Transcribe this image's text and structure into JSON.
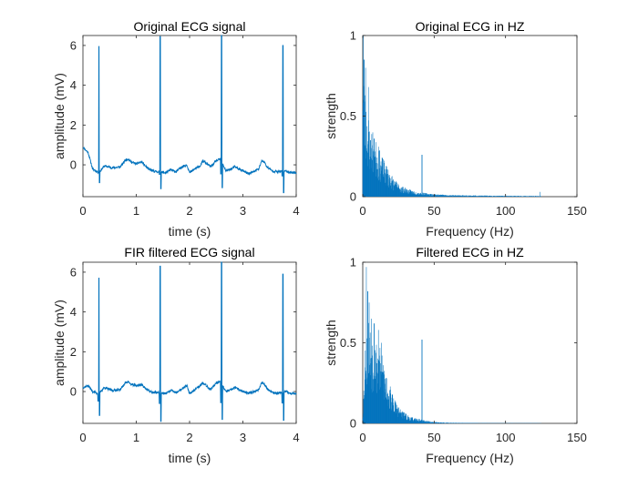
{
  "figure": {
    "background": "#ffffff",
    "line_color": "#0072bd",
    "axes_color": "#262626"
  },
  "chart_data": [
    {
      "id": "orig-time",
      "type": "line",
      "title": "Original ECG signal",
      "xlabel": "time (s)",
      "ylabel": "amplitude (mV)",
      "xlim": [
        0,
        4
      ],
      "ylim": [
        -1.6,
        6.5
      ],
      "xticks": [
        0,
        1,
        2,
        3,
        4
      ],
      "yticks": [
        0,
        2,
        4,
        6
      ],
      "baseline_points": [
        [
          0,
          0.9
        ],
        [
          0.1,
          0.6
        ],
        [
          0.18,
          -0.2
        ],
        [
          0.3,
          -0.4
        ],
        [
          0.4,
          -0.05
        ],
        [
          0.55,
          -0.15
        ],
        [
          0.7,
          -0.1
        ],
        [
          0.8,
          0.25
        ],
        [
          0.85,
          0.3
        ],
        [
          0.9,
          0.15
        ],
        [
          1.0,
          0.05
        ],
        [
          1.1,
          0.15
        ],
        [
          1.2,
          -0.15
        ],
        [
          1.3,
          -0.3
        ],
        [
          1.4,
          -0.35
        ],
        [
          1.55,
          -0.4
        ],
        [
          1.65,
          -0.25
        ],
        [
          1.75,
          -0.35
        ],
        [
          1.85,
          -0.1
        ],
        [
          1.95,
          0.0
        ],
        [
          2.0,
          -0.4
        ],
        [
          2.1,
          -0.2
        ],
        [
          2.2,
          -0.05
        ],
        [
          2.25,
          0.2
        ],
        [
          2.3,
          0.1
        ],
        [
          2.35,
          0.0
        ],
        [
          2.4,
          -0.1
        ],
        [
          2.5,
          0.2
        ],
        [
          2.58,
          0.3
        ],
        [
          2.68,
          -0.3
        ],
        [
          2.75,
          -0.25
        ],
        [
          2.85,
          -0.1
        ],
        [
          3.0,
          -0.3
        ],
        [
          3.1,
          -0.45
        ],
        [
          3.2,
          -0.35
        ],
        [
          3.3,
          -0.2
        ],
        [
          3.35,
          0.2
        ],
        [
          3.4,
          0.15
        ],
        [
          3.45,
          -0.1
        ],
        [
          3.55,
          -0.3
        ],
        [
          3.65,
          -0.35
        ],
        [
          3.8,
          -0.3
        ],
        [
          3.85,
          -0.35
        ],
        [
          3.95,
          -0.4
        ],
        [
          4.0,
          -0.4
        ]
      ],
      "spikes": [
        {
          "t": 0.3,
          "peak": 5.95,
          "trough": -0.9
        },
        {
          "t": 1.45,
          "peak": 6.45,
          "trough": -1.2
        },
        {
          "t": 2.6,
          "peak": 6.5,
          "trough": -1.15
        },
        {
          "t": 3.75,
          "peak": 6.0,
          "trough": -1.4
        }
      ]
    },
    {
      "id": "orig-freq",
      "type": "bar",
      "title": "Original ECG in HZ",
      "xlabel": "Frequency (Hz)",
      "ylabel": "strength",
      "xlim": [
        0,
        150
      ],
      "ylim": [
        0,
        1
      ],
      "xticks": [
        0,
        50,
        100,
        150
      ],
      "yticks": [
        0,
        0.5,
        1
      ],
      "envelope": [
        [
          0,
          1.0
        ],
        [
          0.5,
          0.82
        ],
        [
          1.5,
          0.62
        ],
        [
          3,
          0.52
        ],
        [
          5,
          0.42
        ],
        [
          7,
          0.38
        ],
        [
          10,
          0.3
        ],
        [
          14,
          0.22
        ],
        [
          18,
          0.16
        ],
        [
          22,
          0.1
        ],
        [
          26,
          0.07
        ],
        [
          30,
          0.05
        ],
        [
          35,
          0.035
        ],
        [
          40,
          0.025
        ],
        [
          45,
          0.02
        ],
        [
          50,
          0.015
        ],
        [
          60,
          0.01
        ],
        [
          80,
          0.007
        ],
        [
          100,
          0.005
        ],
        [
          125,
          0.004
        ]
      ],
      "peaks": [
        [
          0.3,
          1.0
        ],
        [
          1,
          0.85
        ],
        [
          2,
          0.8
        ],
        [
          4,
          0.68
        ],
        [
          5.5,
          0.35
        ],
        [
          8,
          0.36
        ],
        [
          11,
          0.31
        ],
        [
          41.5,
          0.26
        ],
        [
          124,
          0.03
        ]
      ],
      "max_freq": 125
    },
    {
      "id": "filt-time",
      "type": "line",
      "title": "FIR filtered ECG signal",
      "xlabel": "time (s)",
      "ylabel": "amplitude (mV)",
      "xlim": [
        0,
        4
      ],
      "ylim": [
        -1.6,
        6.5
      ],
      "xticks": [
        0,
        1,
        2,
        3,
        4
      ],
      "yticks": [
        0,
        2,
        4,
        6
      ],
      "baseline_points": [
        [
          0,
          0.2
        ],
        [
          0.1,
          0.3
        ],
        [
          0.18,
          0.0
        ],
        [
          0.3,
          -0.1
        ],
        [
          0.4,
          0.2
        ],
        [
          0.55,
          0.05
        ],
        [
          0.7,
          0.1
        ],
        [
          0.8,
          0.45
        ],
        [
          0.85,
          0.5
        ],
        [
          0.9,
          0.35
        ],
        [
          1.0,
          0.3
        ],
        [
          1.1,
          0.35
        ],
        [
          1.2,
          0.1
        ],
        [
          1.3,
          -0.05
        ],
        [
          1.4,
          -0.05
        ],
        [
          1.55,
          -0.1
        ],
        [
          1.65,
          0.05
        ],
        [
          1.75,
          -0.05
        ],
        [
          1.85,
          0.1
        ],
        [
          1.95,
          0.3
        ],
        [
          2.0,
          -0.1
        ],
        [
          2.1,
          0.1
        ],
        [
          2.2,
          0.3
        ],
        [
          2.25,
          0.45
        ],
        [
          2.3,
          0.35
        ],
        [
          2.35,
          0.2
        ],
        [
          2.4,
          0.1
        ],
        [
          2.5,
          0.45
        ],
        [
          2.58,
          0.5
        ],
        [
          2.68,
          0.0
        ],
        [
          2.75,
          0.05
        ],
        [
          2.85,
          0.2
        ],
        [
          3.0,
          0.0
        ],
        [
          3.1,
          -0.1
        ],
        [
          3.2,
          0.0
        ],
        [
          3.3,
          0.1
        ],
        [
          3.35,
          0.45
        ],
        [
          3.4,
          0.4
        ],
        [
          3.45,
          0.15
        ],
        [
          3.55,
          -0.05
        ],
        [
          3.65,
          -0.1
        ],
        [
          3.8,
          0.0
        ],
        [
          3.85,
          -0.05
        ],
        [
          3.95,
          -0.1
        ],
        [
          4.0,
          -0.1
        ]
      ],
      "spikes": [
        {
          "t": 0.3,
          "peak": 5.7,
          "trough": -1.2
        },
        {
          "t": 1.45,
          "peak": 6.3,
          "trough": -1.5
        },
        {
          "t": 2.6,
          "peak": 6.5,
          "trough": -1.4
        },
        {
          "t": 3.75,
          "peak": 5.9,
          "trough": -1.45
        }
      ]
    },
    {
      "id": "filt-freq",
      "type": "bar",
      "title": "Filtered ECG in HZ",
      "xlabel": "Frequency (Hz)",
      "ylabel": "strength",
      "xlim": [
        0,
        150
      ],
      "ylim": [
        0,
        1
      ],
      "xticks": [
        0,
        50,
        100,
        150
      ],
      "yticks": [
        0,
        0.5,
        1
      ],
      "envelope": [
        [
          0,
          0.05
        ],
        [
          1,
          0.3
        ],
        [
          2,
          0.5
        ],
        [
          4,
          0.6
        ],
        [
          6,
          0.55
        ],
        [
          8,
          0.5
        ],
        [
          10,
          0.48
        ],
        [
          13,
          0.42
        ],
        [
          16,
          0.32
        ],
        [
          19,
          0.22
        ],
        [
          22,
          0.15
        ],
        [
          25,
          0.1
        ],
        [
          28,
          0.07
        ],
        [
          32,
          0.045
        ],
        [
          36,
          0.03
        ],
        [
          40,
          0.025
        ],
        [
          45,
          0.015
        ],
        [
          50,
          0.008
        ],
        [
          60,
          0.004
        ],
        [
          80,
          0.002
        ],
        [
          100,
          0.001
        ],
        [
          125,
          0.001
        ]
      ],
      "peaks": [
        [
          2.5,
          0.97
        ],
        [
          3.5,
          0.82
        ],
        [
          4.5,
          0.75
        ],
        [
          6,
          0.65
        ],
        [
          8,
          0.62
        ],
        [
          11,
          0.58
        ],
        [
          13,
          0.5
        ],
        [
          41.5,
          0.52
        ]
      ],
      "max_freq": 125
    }
  ]
}
